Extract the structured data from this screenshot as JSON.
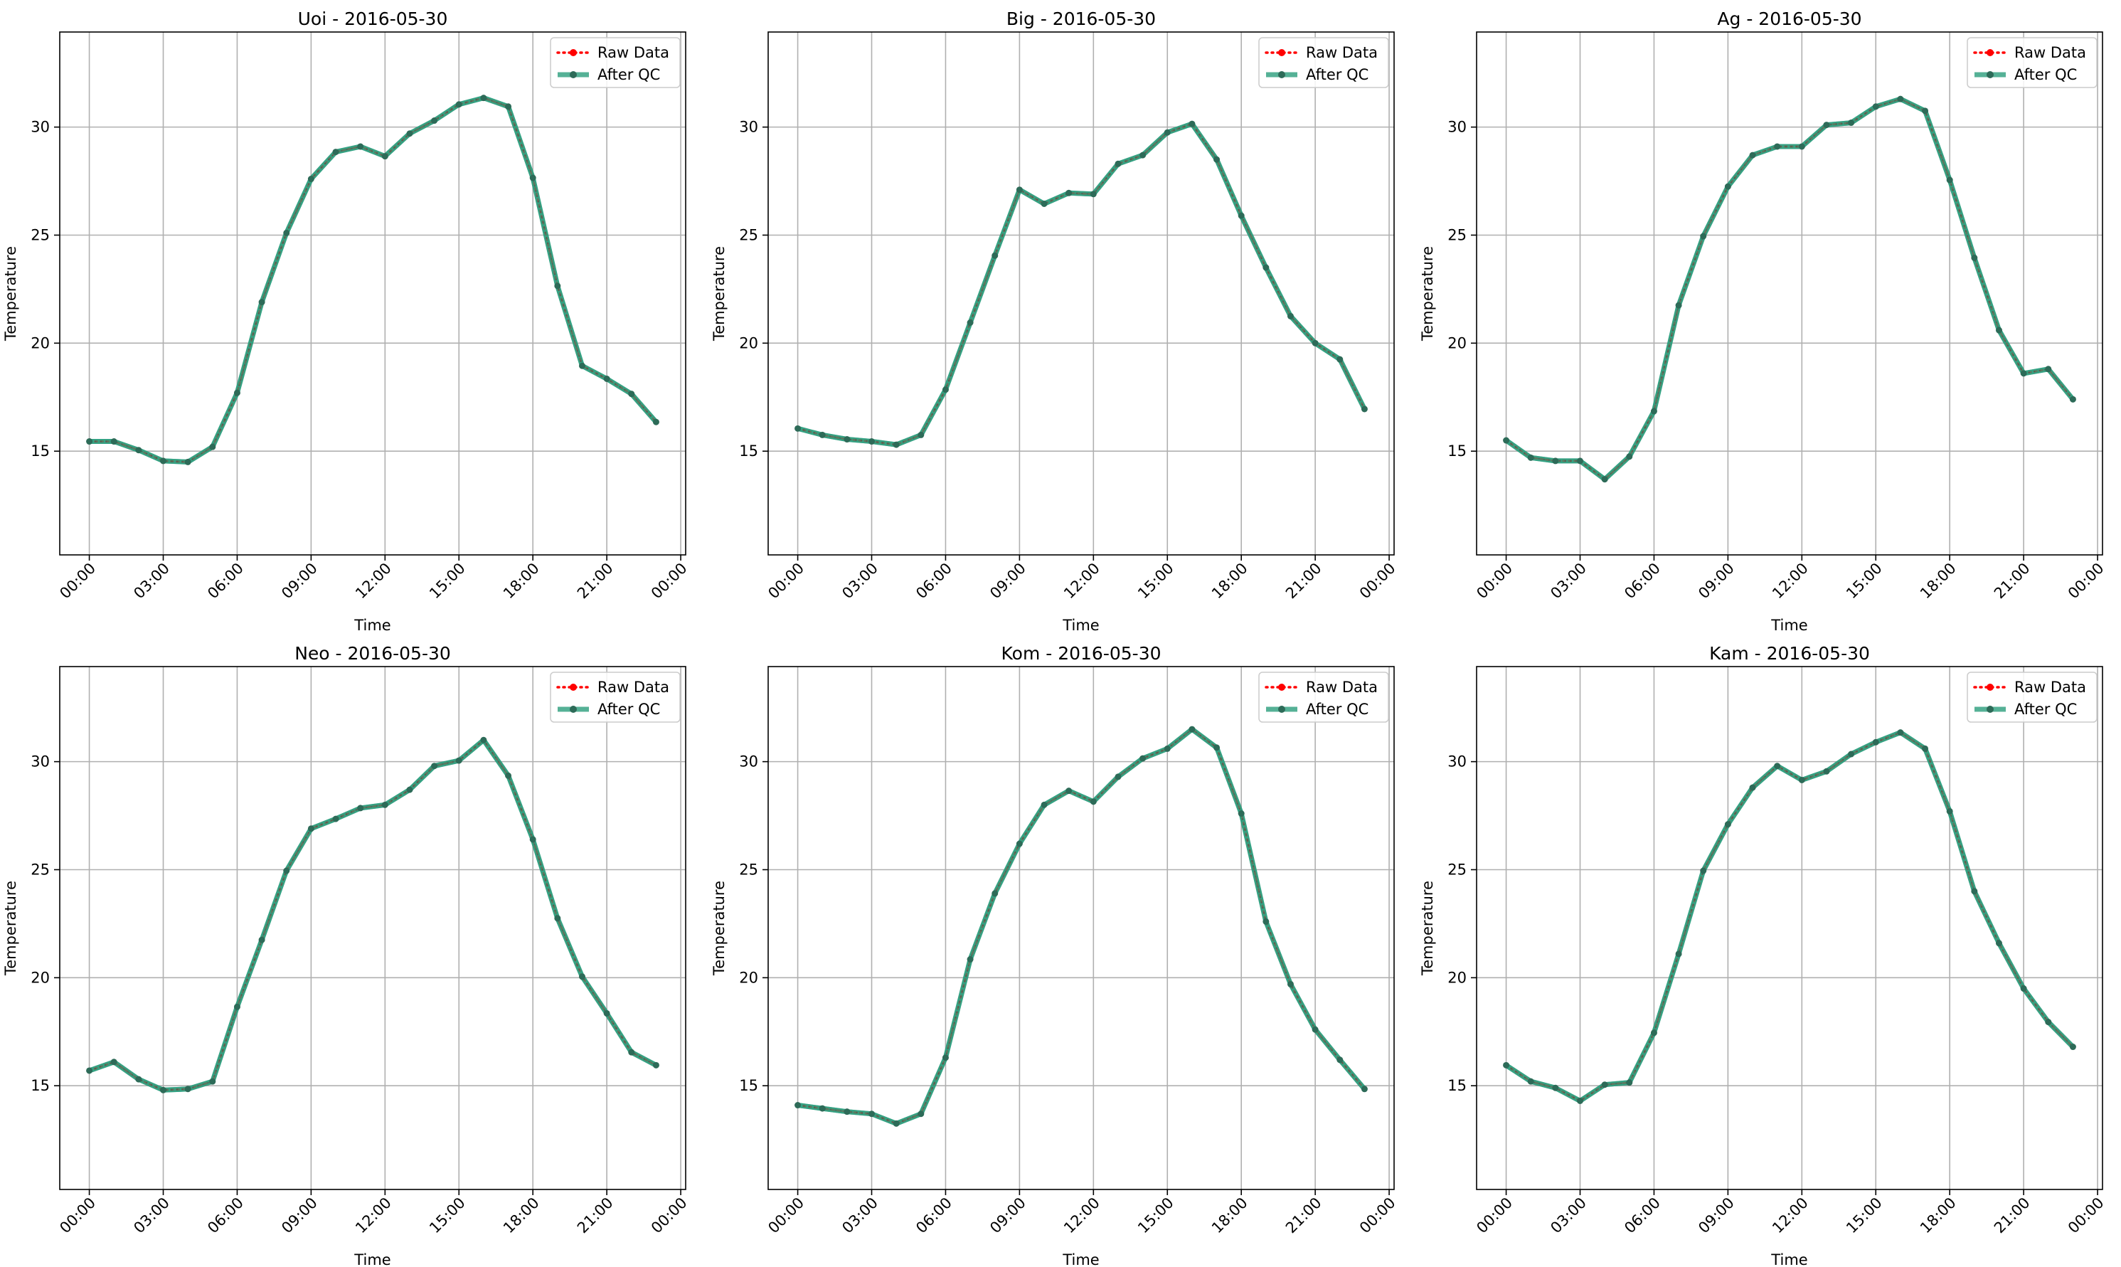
{
  "figure": {
    "legend": {
      "raw": "Raw Data",
      "qc": "After QC"
    },
    "colors": {
      "raw": "#ff0000",
      "qc": "#2a9d7c",
      "grid": "#b0b0b0"
    }
  },
  "chart_data": [
    {
      "type": "line",
      "title": "Uoi - 2016-05-30",
      "xlabel": "Time",
      "ylabel": "Temperature",
      "xticks": [
        "00:00",
        "03:00",
        "06:00",
        "09:00",
        "12:00",
        "15:00",
        "18:00",
        "21:00",
        "00:00"
      ],
      "xtick_hours": [
        0,
        3,
        6,
        9,
        12,
        15,
        18,
        21,
        24
      ],
      "xlim": [
        -1.2,
        24.2
      ],
      "yticks": [
        15,
        20,
        25,
        30
      ],
      "ylim": [
        10.2,
        34.4
      ],
      "grid": true,
      "legend_position": "upper right",
      "x": [
        0,
        1,
        2,
        3,
        4,
        5,
        6,
        7,
        8,
        9,
        10,
        11,
        12,
        13,
        14,
        15,
        16,
        17,
        18,
        19,
        20,
        21,
        22,
        23
      ],
      "series": [
        {
          "name": "Raw Data",
          "values": [
            15.45,
            15.45,
            15.05,
            14.55,
            14.5,
            15.2,
            17.7,
            21.9,
            25.1,
            27.6,
            28.85,
            29.1,
            28.65,
            29.7,
            30.3,
            31.05,
            31.35,
            30.95,
            27.65,
            22.65,
            18.95,
            18.35,
            17.65,
            16.35
          ]
        },
        {
          "name": "After QC",
          "values": [
            15.45,
            15.45,
            15.05,
            14.55,
            14.5,
            15.2,
            17.7,
            21.9,
            25.1,
            27.6,
            28.85,
            29.1,
            28.65,
            29.7,
            30.3,
            31.05,
            31.35,
            30.95,
            27.65,
            22.65,
            18.95,
            18.35,
            17.65,
            16.35
          ]
        }
      ]
    },
    {
      "type": "line",
      "title": "Big - 2016-05-30",
      "xlabel": "Time",
      "ylabel": "Temperature",
      "xticks": [
        "00:00",
        "03:00",
        "06:00",
        "09:00",
        "12:00",
        "15:00",
        "18:00",
        "21:00",
        "00:00"
      ],
      "xtick_hours": [
        0,
        3,
        6,
        9,
        12,
        15,
        18,
        21,
        24
      ],
      "xlim": [
        -1.2,
        24.2
      ],
      "yticks": [
        15,
        20,
        25,
        30
      ],
      "ylim": [
        10.2,
        34.4
      ],
      "grid": true,
      "legend_position": "upper right",
      "x": [
        0,
        1,
        2,
        3,
        4,
        5,
        6,
        7,
        8,
        9,
        10,
        11,
        12,
        13,
        14,
        15,
        16,
        17,
        18,
        19,
        20,
        21,
        22,
        23
      ],
      "series": [
        {
          "name": "Raw Data",
          "values": [
            16.05,
            15.75,
            15.55,
            15.45,
            15.3,
            15.75,
            17.85,
            20.95,
            24.05,
            27.1,
            26.45,
            26.95,
            26.9,
            28.3,
            28.7,
            29.75,
            30.15,
            28.5,
            25.9,
            23.5,
            21.25,
            20.0,
            19.25,
            16.95
          ]
        },
        {
          "name": "After QC",
          "values": [
            16.05,
            15.75,
            15.55,
            15.45,
            15.3,
            15.75,
            17.85,
            20.95,
            24.05,
            27.1,
            26.45,
            26.95,
            26.9,
            28.3,
            28.7,
            29.75,
            30.15,
            28.5,
            25.9,
            23.5,
            21.25,
            20.0,
            19.25,
            16.95
          ]
        }
      ]
    },
    {
      "type": "line",
      "title": "Ag - 2016-05-30",
      "xlabel": "Time",
      "ylabel": "Temperature",
      "xticks": [
        "00:00",
        "03:00",
        "06:00",
        "09:00",
        "12:00",
        "15:00",
        "18:00",
        "21:00",
        "00:00"
      ],
      "xtick_hours": [
        0,
        3,
        6,
        9,
        12,
        15,
        18,
        21,
        24
      ],
      "xlim": [
        -1.2,
        24.2
      ],
      "yticks": [
        15,
        20,
        25,
        30
      ],
      "ylim": [
        10.2,
        34.4
      ],
      "grid": true,
      "legend_position": "upper right",
      "x": [
        0,
        1,
        2,
        3,
        4,
        5,
        6,
        7,
        8,
        9,
        10,
        11,
        12,
        13,
        14,
        15,
        16,
        17,
        18,
        19,
        20,
        21,
        22,
        23
      ],
      "series": [
        {
          "name": "Raw Data",
          "values": [
            15.5,
            14.7,
            14.55,
            14.55,
            13.7,
            14.75,
            16.85,
            21.75,
            24.95,
            27.25,
            28.7,
            29.1,
            29.1,
            30.1,
            30.2,
            30.95,
            31.3,
            30.75,
            27.55,
            23.95,
            20.6,
            18.6,
            18.8,
            17.4
          ]
        },
        {
          "name": "After QC",
          "values": [
            15.5,
            14.7,
            14.55,
            14.55,
            13.7,
            14.75,
            16.85,
            21.75,
            24.95,
            27.25,
            28.7,
            29.1,
            29.1,
            30.1,
            30.2,
            30.95,
            31.3,
            30.75,
            27.55,
            23.95,
            20.6,
            18.6,
            18.8,
            17.4
          ]
        }
      ]
    },
    {
      "type": "line",
      "title": "Neo - 2016-05-30",
      "xlabel": "Time",
      "ylabel": "Temperature",
      "xticks": [
        "00:00",
        "03:00",
        "06:00",
        "09:00",
        "12:00",
        "15:00",
        "18:00",
        "21:00",
        "00:00"
      ],
      "xtick_hours": [
        0,
        3,
        6,
        9,
        12,
        15,
        18,
        21,
        24
      ],
      "xlim": [
        -1.2,
        24.2
      ],
      "yticks": [
        15,
        20,
        25,
        30
      ],
      "ylim": [
        10.2,
        34.4
      ],
      "grid": true,
      "legend_position": "upper right",
      "x": [
        0,
        1,
        2,
        3,
        4,
        5,
        6,
        7,
        8,
        9,
        10,
        11,
        12,
        13,
        14,
        15,
        16,
        17,
        18,
        19,
        20,
        21,
        22,
        23
      ],
      "series": [
        {
          "name": "Raw Data",
          "values": [
            15.7,
            16.1,
            15.3,
            14.8,
            14.85,
            15.2,
            18.65,
            21.75,
            24.95,
            26.9,
            27.35,
            27.85,
            28.0,
            28.7,
            29.8,
            30.05,
            31.0,
            29.35,
            26.4,
            22.75,
            20.05,
            18.35,
            16.55,
            15.95
          ]
        },
        {
          "name": "After QC",
          "values": [
            15.7,
            16.1,
            15.3,
            14.8,
            14.85,
            15.2,
            18.65,
            21.75,
            24.95,
            26.9,
            27.35,
            27.85,
            28.0,
            28.7,
            29.8,
            30.05,
            31.0,
            29.35,
            26.4,
            22.75,
            20.05,
            18.35,
            16.55,
            15.95
          ]
        }
      ]
    },
    {
      "type": "line",
      "title": "Kom - 2016-05-30",
      "xlabel": "Time",
      "ylabel": "Temperature",
      "xticks": [
        "00:00",
        "03:00",
        "06:00",
        "09:00",
        "12:00",
        "15:00",
        "18:00",
        "21:00",
        "00:00"
      ],
      "xtick_hours": [
        0,
        3,
        6,
        9,
        12,
        15,
        18,
        21,
        24
      ],
      "xlim": [
        -1.2,
        24.2
      ],
      "yticks": [
        15,
        20,
        25,
        30
      ],
      "ylim": [
        10.2,
        34.4
      ],
      "grid": true,
      "legend_position": "upper right",
      "x": [
        0,
        1,
        2,
        3,
        4,
        5,
        6,
        7,
        8,
        9,
        10,
        11,
        12,
        13,
        14,
        15,
        16,
        17,
        18,
        19,
        20,
        21,
        22,
        23
      ],
      "series": [
        {
          "name": "Raw Data",
          "values": [
            14.1,
            13.95,
            13.8,
            13.7,
            13.25,
            13.7,
            16.3,
            20.85,
            23.9,
            26.2,
            28.0,
            28.65,
            28.15,
            29.3,
            30.15,
            30.6,
            31.5,
            30.65,
            27.6,
            22.6,
            19.7,
            17.6,
            16.2,
            14.85
          ]
        },
        {
          "name": "After QC",
          "values": [
            14.1,
            13.95,
            13.8,
            13.7,
            13.25,
            13.7,
            16.3,
            20.85,
            23.9,
            26.2,
            28.0,
            28.65,
            28.15,
            29.3,
            30.15,
            30.6,
            31.5,
            30.65,
            27.6,
            22.6,
            19.7,
            17.6,
            16.2,
            14.85
          ]
        }
      ]
    },
    {
      "type": "line",
      "title": "Kam - 2016-05-30",
      "xlabel": "Time",
      "ylabel": "Temperature",
      "xticks": [
        "00:00",
        "03:00",
        "06:00",
        "09:00",
        "12:00",
        "15:00",
        "18:00",
        "21:00",
        "00:00"
      ],
      "xtick_hours": [
        0,
        3,
        6,
        9,
        12,
        15,
        18,
        21,
        24
      ],
      "xlim": [
        -1.2,
        24.2
      ],
      "yticks": [
        15,
        20,
        25,
        30
      ],
      "ylim": [
        10.2,
        34.4
      ],
      "grid": true,
      "legend_position": "upper right",
      "x": [
        0,
        1,
        2,
        3,
        4,
        5,
        6,
        7,
        8,
        9,
        10,
        11,
        12,
        13,
        14,
        15,
        16,
        17,
        18,
        19,
        20,
        21,
        22,
        23
      ],
      "series": [
        {
          "name": "Raw Data",
          "values": [
            15.95,
            15.2,
            14.9,
            14.3,
            15.05,
            15.15,
            17.45,
            21.1,
            24.95,
            27.1,
            28.8,
            29.8,
            29.15,
            29.55,
            30.35,
            30.9,
            31.35,
            30.6,
            27.7,
            24.0,
            21.6,
            19.5,
            17.95,
            16.8
          ]
        },
        {
          "name": "After QC",
          "values": [
            15.95,
            15.2,
            14.9,
            14.3,
            15.05,
            15.15,
            17.45,
            21.1,
            24.95,
            27.1,
            28.8,
            29.8,
            29.15,
            29.55,
            30.35,
            30.9,
            31.35,
            30.6,
            27.7,
            24.0,
            21.6,
            19.5,
            17.95,
            16.8
          ]
        }
      ]
    }
  ]
}
